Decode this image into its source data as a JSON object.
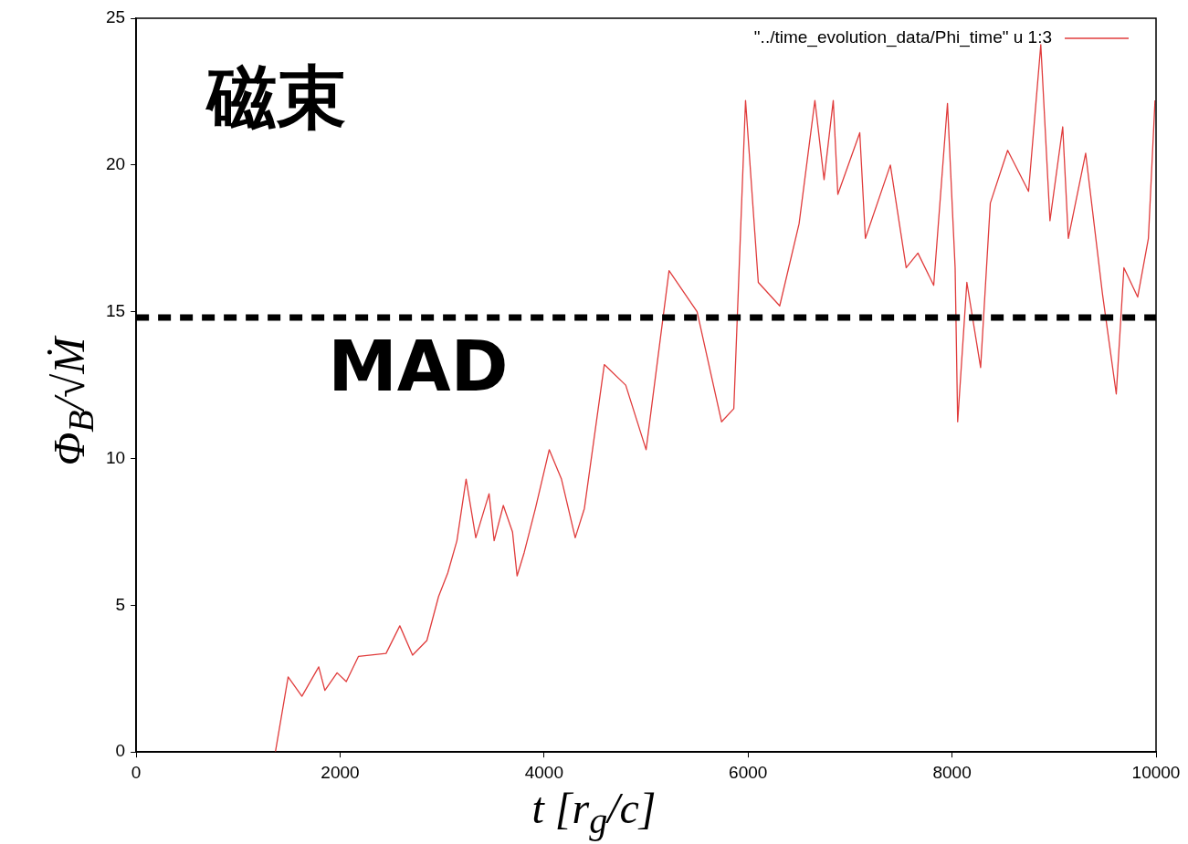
{
  "chart_data": {
    "type": "line",
    "xlabel": "t [r$_{g}$/c]",
    "ylabel": "Φ$_{B}$/√Ṁ",
    "xlim": [
      0,
      10000
    ],
    "xticks": [
      0,
      2000,
      4000,
      6000,
      8000,
      10000
    ],
    "ylim": [
      0,
      25
    ],
    "yticks": [
      0,
      5,
      10,
      15,
      20,
      25
    ],
    "legend": "top right",
    "marker": "none",
    "line_style": "solid",
    "annotations": [
      "磁束"
    ],
    "ref_lines": [
      {
        "axis": "y",
        "value": 14.8,
        "label": "MAD",
        "color": "#000000",
        "line_style": "dashed"
      }
    ],
    "series": [
      {
        "name": "\"../time_evolution_data/Phi_time\" u 1:3",
        "color": "#e03c3c",
        "x": [
          1365,
          1490,
          1625,
          1790,
          1850,
          1970,
          2060,
          2180,
          2450,
          2585,
          2710,
          2850,
          2965,
          3055,
          3145,
          3235,
          3330,
          3460,
          3510,
          3600,
          3690,
          3735,
          3805,
          3915,
          4050,
          4170,
          4305,
          4395,
          4590,
          4800,
          5000,
          5225,
          5500,
          5740,
          5860,
          5975,
          6100,
          6310,
          6500,
          6655,
          6745,
          6835,
          6880,
          7095,
          7150,
          7395,
          7550,
          7665,
          7820,
          7955,
          8030,
          8055,
          8145,
          8280,
          8375,
          8545,
          8750,
          8870,
          8960,
          9085,
          9140,
          9310,
          9475,
          9610,
          9685,
          9820,
          9925,
          9990
        ],
        "values": [
          0,
          2.56,
          1.9,
          2.9,
          2.1,
          2.7,
          2.4,
          3.26,
          3.36,
          4.3,
          3.3,
          3.8,
          5.3,
          6.1,
          7.2,
          9.3,
          7.3,
          8.8,
          7.2,
          8.4,
          7.5,
          6.0,
          6.8,
          8.3,
          10.3,
          9.3,
          7.3,
          8.3,
          13.2,
          12.5,
          10.3,
          16.4,
          15.0,
          11.25,
          11.7,
          22.2,
          16.0,
          15.2,
          18.0,
          22.2,
          19.5,
          22.2,
          19.0,
          21.1,
          17.5,
          20.0,
          16.5,
          17.0,
          15.9,
          22.1,
          16.5,
          11.25,
          16.0,
          13.1,
          18.7,
          20.5,
          19.1,
          24.1,
          18.1,
          21.3,
          17.5,
          20.4,
          15.6,
          12.2,
          16.5,
          15.5,
          17.5,
          22.2
        ]
      }
    ]
  }
}
